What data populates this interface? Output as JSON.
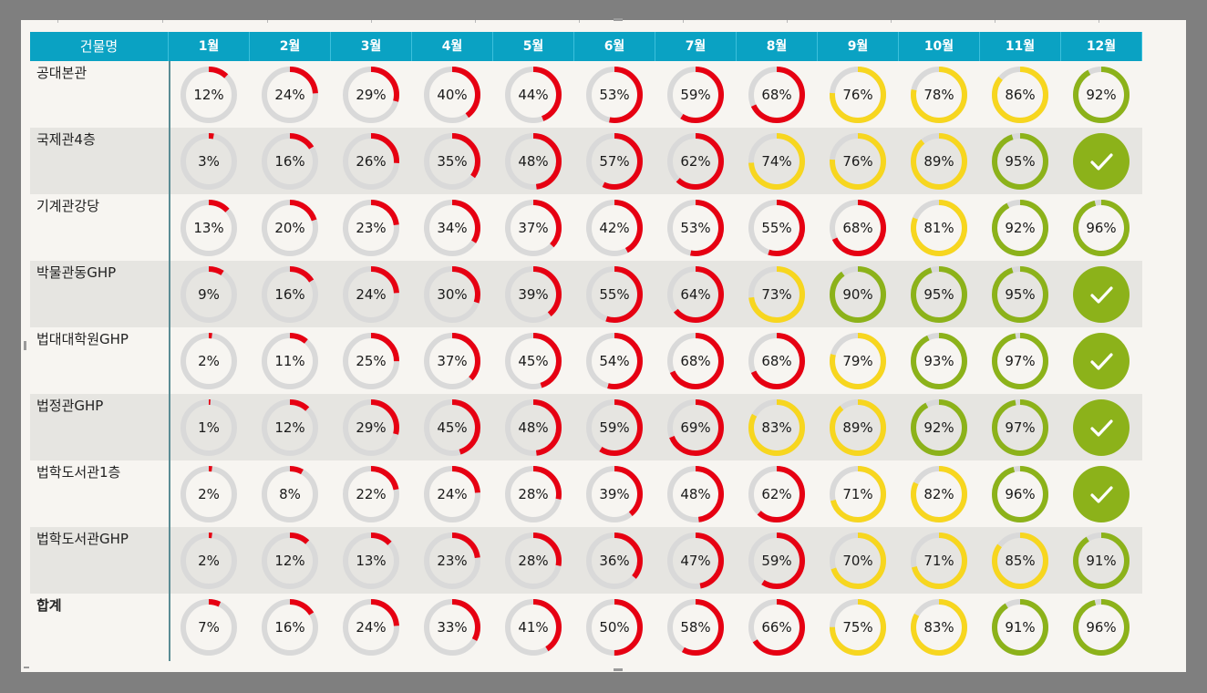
{
  "colors": {
    "header_bg": "#0aa2c3",
    "header_text": "#ffffff",
    "track": "#d9d9d9",
    "red": "#e60012",
    "yellow": "#f7d61f",
    "green": "#8cb21a",
    "alt_row": "#e6e5e1",
    "background": "#f7f5f1",
    "frame": "#7f7f7f"
  },
  "icons": {
    "complete": "check-icon"
  },
  "chart_data": {
    "type": "table",
    "title": "",
    "name_header": "건물명",
    "months": [
      "1월",
      "2월",
      "3월",
      "4월",
      "5월",
      "6월",
      "7월",
      "8월",
      "9월",
      "10월",
      "11월",
      "12월"
    ],
    "unit": "%",
    "color_rule": {
      "red": "below 70",
      "yellow": "70 to 89",
      "green": "90 and above"
    },
    "rows": [
      {
        "name": "공대본관",
        "values": [
          12,
          24,
          29,
          40,
          44,
          53,
          59,
          68,
          76,
          78,
          86,
          92
        ],
        "colors": [
          "red",
          "red",
          "red",
          "red",
          "red",
          "red",
          "red",
          "red",
          "yellow",
          "yellow",
          "yellow",
          "green"
        ]
      },
      {
        "name": "국제관4층",
        "values": [
          3,
          16,
          26,
          35,
          48,
          57,
          62,
          74,
          76,
          89,
          95,
          100
        ],
        "colors": [
          "red",
          "red",
          "red",
          "red",
          "red",
          "red",
          "red",
          "yellow",
          "yellow",
          "yellow",
          "green",
          "green"
        ]
      },
      {
        "name": "기계관강당",
        "values": [
          13,
          20,
          23,
          34,
          37,
          42,
          53,
          55,
          68,
          81,
          92,
          96
        ],
        "colors": [
          "red",
          "red",
          "red",
          "red",
          "red",
          "red",
          "red",
          "red",
          "red",
          "yellow",
          "green",
          "green"
        ]
      },
      {
        "name": "박물관동GHP",
        "values": [
          9,
          16,
          24,
          30,
          39,
          55,
          64,
          73,
          90,
          95,
          95,
          100
        ],
        "colors": [
          "red",
          "red",
          "red",
          "red",
          "red",
          "red",
          "red",
          "yellow",
          "green",
          "green",
          "green",
          "green"
        ]
      },
      {
        "name": "법대대학원GHP",
        "values": [
          2,
          11,
          25,
          37,
          45,
          54,
          68,
          68,
          79,
          93,
          97,
          100
        ],
        "colors": [
          "red",
          "red",
          "red",
          "red",
          "red",
          "red",
          "red",
          "red",
          "yellow",
          "green",
          "green",
          "green"
        ]
      },
      {
        "name": "법정관GHP",
        "values": [
          1,
          12,
          29,
          45,
          48,
          59,
          69,
          83,
          89,
          92,
          97,
          100
        ],
        "colors": [
          "red",
          "red",
          "red",
          "red",
          "red",
          "red",
          "red",
          "yellow",
          "yellow",
          "green",
          "green",
          "green"
        ]
      },
      {
        "name": "법학도서관1층",
        "values": [
          2,
          8,
          22,
          24,
          28,
          39,
          48,
          62,
          71,
          82,
          96,
          100
        ],
        "colors": [
          "red",
          "red",
          "red",
          "red",
          "red",
          "red",
          "red",
          "red",
          "yellow",
          "yellow",
          "green",
          "green"
        ]
      },
      {
        "name": "법학도서관GHP",
        "values": [
          2,
          12,
          13,
          23,
          28,
          36,
          47,
          59,
          70,
          71,
          85,
          91
        ],
        "colors": [
          "red",
          "red",
          "red",
          "red",
          "red",
          "red",
          "red",
          "red",
          "yellow",
          "yellow",
          "yellow",
          "green"
        ]
      },
      {
        "name": "합계",
        "values": [
          7,
          16,
          24,
          33,
          41,
          50,
          58,
          66,
          75,
          83,
          91,
          96
        ],
        "colors": [
          "red",
          "red",
          "red",
          "red",
          "red",
          "red",
          "red",
          "red",
          "yellow",
          "yellow",
          "green",
          "green"
        ]
      }
    ]
  }
}
